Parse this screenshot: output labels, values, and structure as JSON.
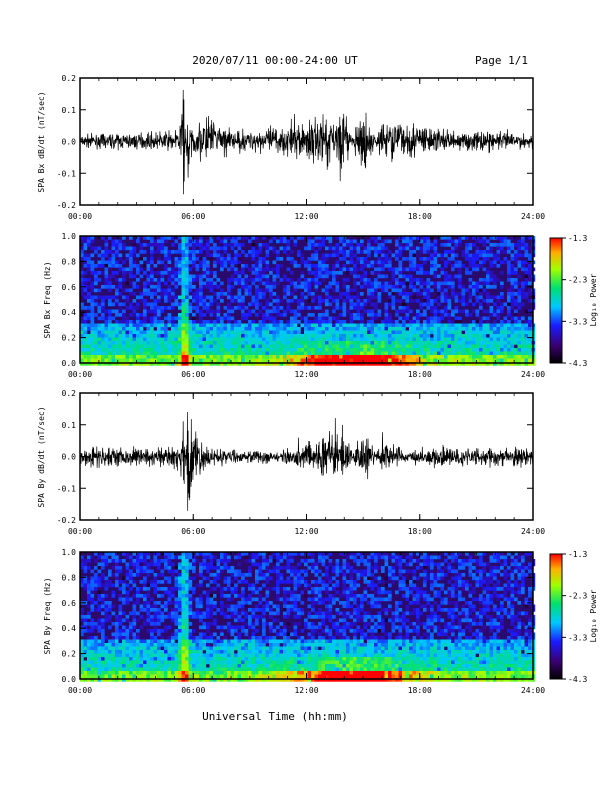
{
  "header": {
    "title": "2020/07/11  00:00-24:00 UT",
    "page": "Page 1/1"
  },
  "xlabel": "Universal Time (hh:mm)",
  "x_ticks": [
    "00:00",
    "06:00",
    "12:00",
    "18:00",
    "24:00"
  ],
  "colorbar": {
    "label": "Log₁₀ Power",
    "ticks": [
      "-1.3",
      "-2.3",
      "-3.3",
      "-4.3"
    ],
    "range": [
      -4.3,
      -1.3
    ]
  },
  "chart_data": [
    {
      "type": "line",
      "ylabel": "SPA Bx dB/dt (nT/sec)",
      "xlim": [
        0,
        24
      ],
      "ylim": [
        -0.2,
        0.2
      ],
      "y_ticks": [
        "0.2",
        "0.1",
        "0.0",
        "-0.1",
        "-0.2"
      ],
      "series": [
        {
          "x": [
            0,
            2,
            4,
            5.2,
            5.5,
            5.7,
            6,
            6.8,
            8,
            10,
            12,
            14,
            15,
            16,
            18,
            20,
            22,
            24
          ],
          "y": [
            0.01,
            0.01,
            0.015,
            0.02,
            0.19,
            -0.2,
            0.04,
            0.08,
            0.02,
            0.03,
            0.06,
            0.1,
            -0.13,
            0.08,
            0.04,
            0.02,
            0.02,
            0.01
          ]
        }
      ]
    },
    {
      "type": "heatmap",
      "ylabel": "SPA Bx Freq (Hz)",
      "xlim": [
        0,
        24
      ],
      "ylim": [
        0.0,
        1.0
      ],
      "y_ticks": [
        "1.0",
        "0.8",
        "0.6",
        "0.4",
        "0.2",
        "0.0"
      ]
    },
    {
      "type": "line",
      "ylabel": "SPA By dB/dt (nT/sec)",
      "xlim": [
        0,
        24
      ],
      "ylim": [
        -0.2,
        0.2
      ],
      "y_ticks": [
        "0.2",
        "0.1",
        "0.0",
        "-0.1",
        "-0.2"
      ],
      "series": [
        {
          "x": [
            0,
            2,
            4,
            5.2,
            5.5,
            5.7,
            6,
            6.8,
            8,
            10,
            12,
            14,
            15,
            16,
            18,
            20,
            22,
            24
          ],
          "y": [
            -0.02,
            -0.02,
            -0.02,
            -0.03,
            0.16,
            -0.2,
            -0.08,
            -0.02,
            -0.01,
            -0.01,
            0.04,
            0.08,
            -0.1,
            0.05,
            -0.02,
            -0.02,
            -0.02,
            -0.02
          ]
        }
      ]
    },
    {
      "type": "heatmap",
      "ylabel": "SPA By Freq (Hz)",
      "xlim": [
        0,
        24
      ],
      "ylim": [
        0.0,
        1.0
      ],
      "y_ticks": [
        "1.0",
        "0.8",
        "0.6",
        "0.4",
        "0.2",
        "0.0"
      ]
    }
  ]
}
